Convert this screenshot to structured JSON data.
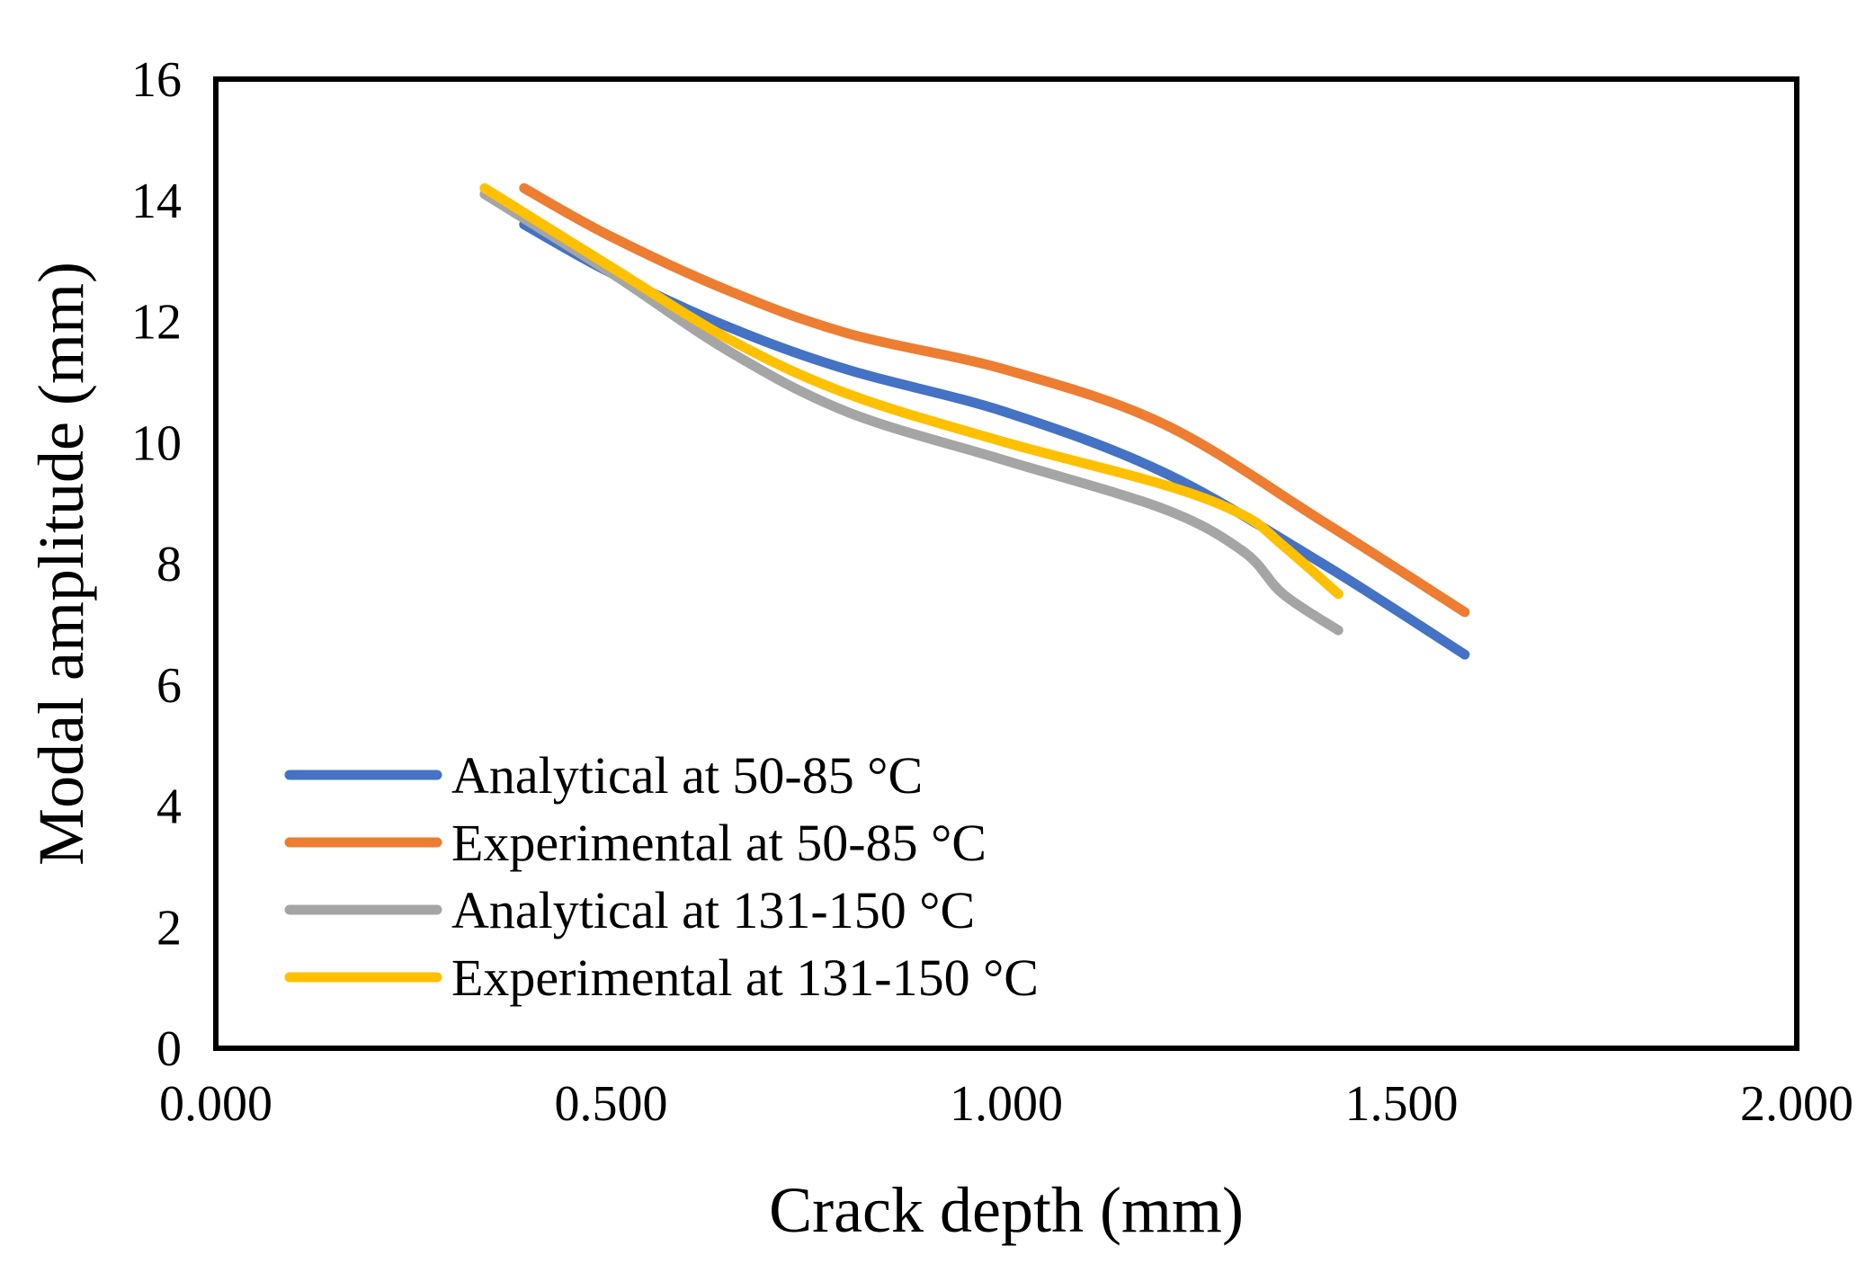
{
  "chart_data": {
    "type": "line",
    "title": "",
    "xlabel": "Crack depth (mm)",
    "ylabel": "Modal amplitude (mm)",
    "xlim": [
      0,
      2
    ],
    "ylim": [
      0,
      16
    ],
    "x_ticks": [
      0,
      0.5,
      1,
      1.5,
      2
    ],
    "x_tick_labels": [
      "0.000",
      "0.500",
      "1.000",
      "1.500",
      "2.000"
    ],
    "y_ticks": [
      0,
      2,
      4,
      6,
      8,
      10,
      12,
      14,
      16
    ],
    "y_tick_labels": [
      "0",
      "2",
      "4",
      "6",
      "8",
      "10",
      "12",
      "14",
      "16"
    ],
    "grid": false,
    "legend_position": "bottom-left",
    "series": [
      {
        "name": "Analytical at 50-85 °C",
        "color": "#4472C4",
        "x": [
          0.39,
          0.5,
          0.65,
          0.8,
          1.0,
          1.2,
          1.4,
          1.58
        ],
        "y": [
          13.6,
          12.8,
          11.9,
          11.2,
          10.5,
          9.5,
          8.0,
          6.5
        ]
      },
      {
        "name": "Experimental at 50-85 °C",
        "color": "#ED7D31",
        "x": [
          0.39,
          0.5,
          0.65,
          0.8,
          1.0,
          1.2,
          1.4,
          1.58
        ],
        "y": [
          14.2,
          13.4,
          12.5,
          11.8,
          11.2,
          10.3,
          8.7,
          7.2
        ]
      },
      {
        "name": "Analytical at 131-150 °C",
        "color": "#A5A5A5",
        "x": [
          0.34,
          0.5,
          0.65,
          0.8,
          1.0,
          1.2,
          1.3,
          1.35,
          1.42
        ],
        "y": [
          14.1,
          12.8,
          11.5,
          10.5,
          9.7,
          8.9,
          8.2,
          7.5,
          6.9
        ]
      },
      {
        "name": "Experimental at 131-150 °C",
        "color": "#FFC000",
        "x": [
          0.34,
          0.5,
          0.65,
          0.8,
          1.0,
          1.2,
          1.3,
          1.35,
          1.42
        ],
        "y": [
          14.2,
          12.9,
          11.7,
          10.8,
          10.0,
          9.3,
          8.8,
          8.3,
          7.5
        ]
      }
    ]
  }
}
